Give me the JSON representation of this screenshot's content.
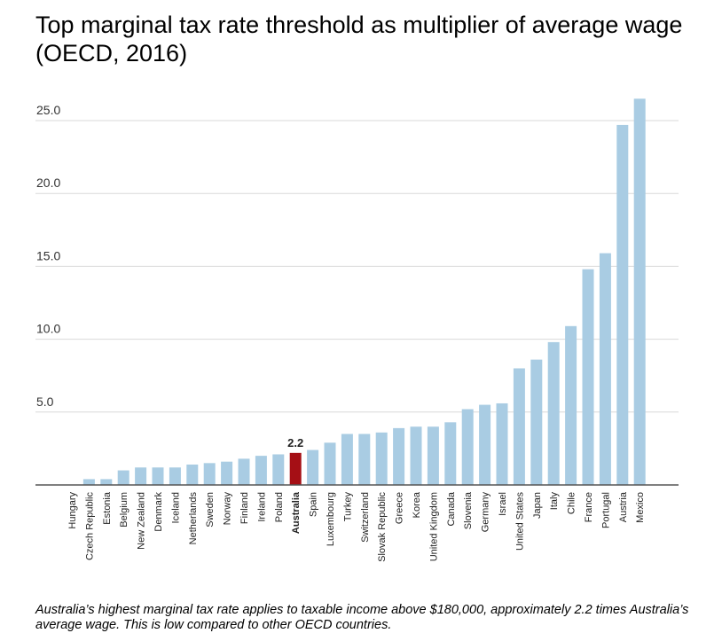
{
  "title": "Top marginal tax rate threshold as multiplier of average wage (OECD, 2016)",
  "caption": "Australia’s highest marginal tax rate applies to taxable income above $180,000, approximately 2.2 times Australia’s average wage. This is low compared to other OECD countries.",
  "colors": {
    "bar": "#a9cce3",
    "highlight": "#a50f15",
    "grid": "#d9d9d9",
    "axis": "#555555"
  },
  "chart_data": {
    "type": "bar",
    "title": "Top marginal tax rate threshold as multiplier of average wage (OECD, 2016)",
    "xlabel": "",
    "ylabel": "",
    "ylim": [
      0,
      27
    ],
    "yticks": [
      5.0,
      10.0,
      15.0,
      20.0,
      25.0
    ],
    "ytick_labels": [
      "5.0",
      "10.0",
      "15.0",
      "20.0",
      "25.0"
    ],
    "grid": true,
    "categories": [
      "Hungary",
      "Czech Republic",
      "Estonia",
      "Belgium",
      "New Zealand",
      "Denmark",
      "Iceland",
      "Netherlands",
      "Sweden",
      "Norway",
      "Finland",
      "Ireland",
      "Poland",
      "Australia",
      "Spain",
      "Luxembourg",
      "Turkey",
      "Switzerland",
      "Slovak Republic",
      "Greece",
      "Korea",
      "United Kingdom",
      "Canada",
      "Slovenia",
      "Germany",
      "Israel",
      "United States",
      "Japan",
      "Italy",
      "Chile",
      "France",
      "Portugal",
      "Austria",
      "Mexico"
    ],
    "values": [
      0.0,
      0.4,
      0.4,
      1.0,
      1.2,
      1.2,
      1.2,
      1.4,
      1.5,
      1.6,
      1.8,
      2.0,
      2.1,
      2.2,
      2.4,
      2.9,
      3.5,
      3.5,
      3.6,
      3.9,
      4.0,
      4.0,
      4.3,
      5.2,
      5.5,
      5.6,
      8.0,
      8.6,
      9.8,
      10.9,
      14.8,
      15.9,
      24.7,
      26.5
    ],
    "highlight": {
      "category": "Australia",
      "label": "2.2"
    }
  }
}
